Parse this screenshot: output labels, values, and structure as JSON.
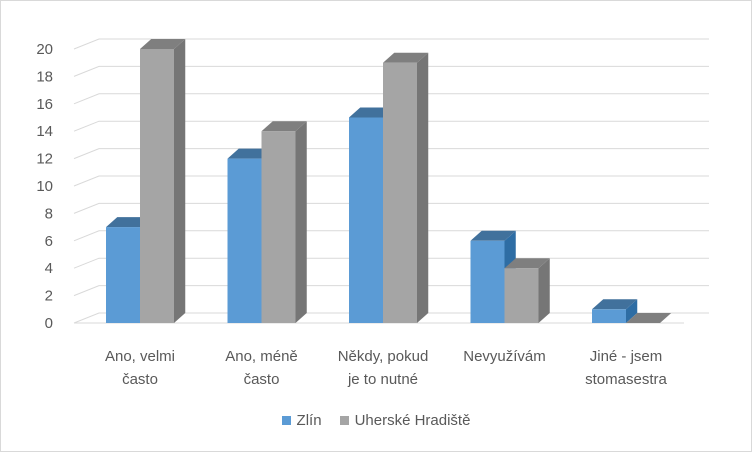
{
  "chart_data": {
    "type": "bar",
    "style": "3d-clustered-column",
    "categories": [
      [
        "Ano, velmi",
        "často"
      ],
      [
        "Ano, méně",
        "často"
      ],
      [
        "Někdy, pokud",
        "je to nutné"
      ],
      [
        "Nevyužívám"
      ],
      [
        "Jiné - jsem",
        "stomasestra"
      ]
    ],
    "series": [
      {
        "name": "Zlín",
        "values": [
          7,
          12,
          15,
          6,
          1
        ],
        "color": "#5b9bd5",
        "side_color": "#2e6da4",
        "top_color": "#41719c"
      },
      {
        "name": "Uherské Hradiště",
        "values": [
          20,
          14,
          19,
          4,
          0
        ],
        "color": "#a5a5a5",
        "side_color": "#767676",
        "top_color": "#7f7f7f"
      }
    ],
    "ylim": [
      0,
      20
    ],
    "yticks": [
      0,
      2,
      4,
      6,
      8,
      10,
      12,
      14,
      16,
      18,
      20
    ],
    "grid": true,
    "legend_position": "bottom",
    "title": "",
    "xlabel": "",
    "ylabel": ""
  }
}
